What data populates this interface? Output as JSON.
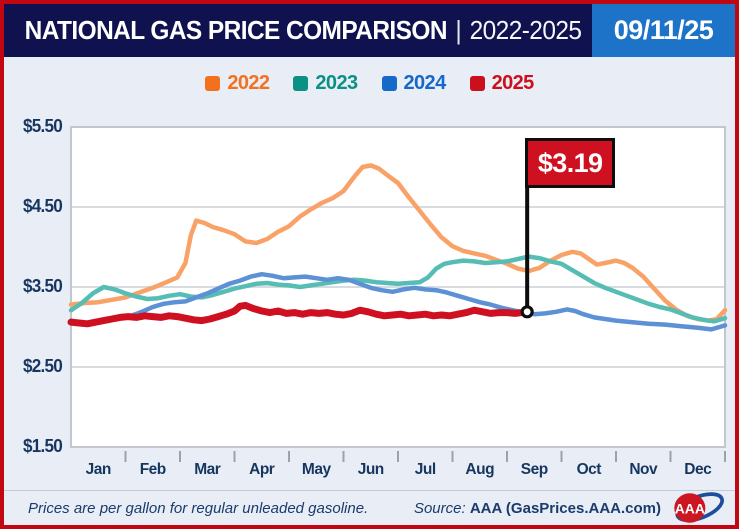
{
  "header": {
    "title": "NATIONAL GAS PRICE COMPARISON",
    "separator": "|",
    "range": "2022-2025",
    "date": "09/11/25"
  },
  "legend": [
    {
      "label": "2022",
      "color": "#F3701E"
    },
    {
      "label": "2023",
      "color": "#0B9183"
    },
    {
      "label": "2024",
      "color": "#1569C8"
    },
    {
      "label": "2025",
      "color": "#CC0F1D"
    }
  ],
  "chart_data": {
    "type": "line",
    "title": "National Gas Price Comparison 2022-2025",
    "unit": "USD per gallon",
    "grid": true,
    "ylim": [
      1.5,
      5.5
    ],
    "y_ticks": [
      {
        "label": "$5.50",
        "value": 5.5
      },
      {
        "label": "$4.50",
        "value": 4.5
      },
      {
        "label": "$3.50",
        "value": 3.5
      },
      {
        "label": "$2.50",
        "value": 2.5
      },
      {
        "label": "$1.50",
        "value": 1.5
      }
    ],
    "x_months": [
      "Jan",
      "Feb",
      "Mar",
      "Apr",
      "May",
      "Jun",
      "Jul",
      "Aug",
      "Sep",
      "Oct",
      "Nov",
      "Dec"
    ],
    "series": [
      {
        "name": "2022",
        "line_color": "#F9A268",
        "emphasis": false,
        "points": [
          [
            0,
            3.28
          ],
          [
            0.25,
            3.3
          ],
          [
            0.5,
            3.31
          ],
          [
            0.75,
            3.34
          ],
          [
            1.0,
            3.37
          ],
          [
            1.25,
            3.43
          ],
          [
            1.5,
            3.49
          ],
          [
            1.75,
            3.56
          ],
          [
            1.95,
            3.62
          ],
          [
            2.1,
            3.8
          ],
          [
            2.2,
            4.15
          ],
          [
            2.3,
            4.33
          ],
          [
            2.45,
            4.3
          ],
          [
            2.6,
            4.25
          ],
          [
            2.8,
            4.21
          ],
          [
            3.0,
            4.16
          ],
          [
            3.2,
            4.07
          ],
          [
            3.4,
            4.05
          ],
          [
            3.6,
            4.1
          ],
          [
            3.8,
            4.19
          ],
          [
            4.0,
            4.26
          ],
          [
            4.2,
            4.38
          ],
          [
            4.4,
            4.47
          ],
          [
            4.6,
            4.55
          ],
          [
            4.8,
            4.61
          ],
          [
            5.0,
            4.7
          ],
          [
            5.2,
            4.88
          ],
          [
            5.35,
            5.0
          ],
          [
            5.5,
            5.02
          ],
          [
            5.65,
            4.98
          ],
          [
            5.8,
            4.9
          ],
          [
            6.0,
            4.8
          ],
          [
            6.2,
            4.62
          ],
          [
            6.4,
            4.45
          ],
          [
            6.6,
            4.28
          ],
          [
            6.8,
            4.12
          ],
          [
            7.0,
            4.01
          ],
          [
            7.2,
            3.95
          ],
          [
            7.4,
            3.92
          ],
          [
            7.6,
            3.89
          ],
          [
            7.8,
            3.84
          ],
          [
            8.0,
            3.79
          ],
          [
            8.2,
            3.73
          ],
          [
            8.4,
            3.7
          ],
          [
            8.6,
            3.74
          ],
          [
            8.8,
            3.83
          ],
          [
            9.0,
            3.9
          ],
          [
            9.2,
            3.94
          ],
          [
            9.35,
            3.92
          ],
          [
            9.5,
            3.85
          ],
          [
            9.65,
            3.78
          ],
          [
            9.8,
            3.8
          ],
          [
            10.0,
            3.83
          ],
          [
            10.15,
            3.8
          ],
          [
            10.3,
            3.74
          ],
          [
            10.5,
            3.63
          ],
          [
            10.7,
            3.48
          ],
          [
            10.9,
            3.33
          ],
          [
            11.1,
            3.22
          ],
          [
            11.3,
            3.14
          ],
          [
            11.5,
            3.1
          ],
          [
            11.7,
            3.08
          ],
          [
            11.85,
            3.1
          ],
          [
            12.0,
            3.21
          ]
        ]
      },
      {
        "name": "2023",
        "line_color": "#56BDB5",
        "emphasis": false,
        "points": [
          [
            0,
            3.21
          ],
          [
            0.2,
            3.3
          ],
          [
            0.4,
            3.42
          ],
          [
            0.6,
            3.5
          ],
          [
            0.8,
            3.47
          ],
          [
            1.0,
            3.42
          ],
          [
            1.2,
            3.38
          ],
          [
            1.4,
            3.35
          ],
          [
            1.6,
            3.36
          ],
          [
            1.8,
            3.39
          ],
          [
            2.0,
            3.41
          ],
          [
            2.2,
            3.38
          ],
          [
            2.4,
            3.37
          ],
          [
            2.6,
            3.4
          ],
          [
            2.8,
            3.44
          ],
          [
            3.0,
            3.48
          ],
          [
            3.2,
            3.51
          ],
          [
            3.4,
            3.54
          ],
          [
            3.6,
            3.55
          ],
          [
            3.8,
            3.53
          ],
          [
            4.0,
            3.52
          ],
          [
            4.2,
            3.5
          ],
          [
            4.4,
            3.52
          ],
          [
            4.6,
            3.54
          ],
          [
            4.8,
            3.56
          ],
          [
            5.0,
            3.58
          ],
          [
            5.2,
            3.59
          ],
          [
            5.4,
            3.58
          ],
          [
            5.6,
            3.56
          ],
          [
            5.8,
            3.55
          ],
          [
            6.0,
            3.54
          ],
          [
            6.2,
            3.55
          ],
          [
            6.4,
            3.56
          ],
          [
            6.55,
            3.62
          ],
          [
            6.7,
            3.73
          ],
          [
            6.85,
            3.79
          ],
          [
            7.0,
            3.81
          ],
          [
            7.2,
            3.83
          ],
          [
            7.4,
            3.82
          ],
          [
            7.6,
            3.8
          ],
          [
            7.8,
            3.81
          ],
          [
            8.0,
            3.82
          ],
          [
            8.2,
            3.85
          ],
          [
            8.4,
            3.88
          ],
          [
            8.6,
            3.86
          ],
          [
            8.8,
            3.82
          ],
          [
            9.0,
            3.79
          ],
          [
            9.2,
            3.71
          ],
          [
            9.4,
            3.63
          ],
          [
            9.6,
            3.55
          ],
          [
            9.8,
            3.49
          ],
          [
            10.0,
            3.44
          ],
          [
            10.2,
            3.39
          ],
          [
            10.4,
            3.34
          ],
          [
            10.6,
            3.29
          ],
          [
            10.8,
            3.25
          ],
          [
            11.0,
            3.22
          ],
          [
            11.2,
            3.17
          ],
          [
            11.4,
            3.12
          ],
          [
            11.6,
            3.09
          ],
          [
            11.8,
            3.07
          ],
          [
            12.0,
            3.11
          ]
        ]
      },
      {
        "name": "2024",
        "line_color": "#5C91D6",
        "emphasis": false,
        "points": [
          [
            0,
            3.08
          ],
          [
            0.15,
            3.06
          ],
          [
            0.3,
            3.05
          ],
          [
            0.5,
            3.07
          ],
          [
            0.7,
            3.09
          ],
          [
            0.9,
            3.11
          ],
          [
            1.1,
            3.14
          ],
          [
            1.3,
            3.19
          ],
          [
            1.5,
            3.25
          ],
          [
            1.7,
            3.29
          ],
          [
            1.9,
            3.31
          ],
          [
            2.1,
            3.32
          ],
          [
            2.3,
            3.37
          ],
          [
            2.5,
            3.42
          ],
          [
            2.7,
            3.48
          ],
          [
            2.9,
            3.54
          ],
          [
            3.1,
            3.58
          ],
          [
            3.3,
            3.63
          ],
          [
            3.5,
            3.66
          ],
          [
            3.7,
            3.64
          ],
          [
            3.9,
            3.61
          ],
          [
            4.1,
            3.62
          ],
          [
            4.3,
            3.63
          ],
          [
            4.5,
            3.61
          ],
          [
            4.7,
            3.59
          ],
          [
            4.9,
            3.61
          ],
          [
            5.1,
            3.59
          ],
          [
            5.3,
            3.54
          ],
          [
            5.5,
            3.49
          ],
          [
            5.7,
            3.46
          ],
          [
            5.9,
            3.44
          ],
          [
            6.1,
            3.47
          ],
          [
            6.3,
            3.49
          ],
          [
            6.5,
            3.47
          ],
          [
            6.7,
            3.46
          ],
          [
            6.9,
            3.43
          ],
          [
            7.1,
            3.39
          ],
          [
            7.3,
            3.35
          ],
          [
            7.5,
            3.31
          ],
          [
            7.7,
            3.28
          ],
          [
            7.9,
            3.24
          ],
          [
            8.1,
            3.21
          ],
          [
            8.3,
            3.18
          ],
          [
            8.5,
            3.16
          ],
          [
            8.7,
            3.17
          ],
          [
            8.9,
            3.19
          ],
          [
            9.1,
            3.22
          ],
          [
            9.25,
            3.2
          ],
          [
            9.4,
            3.16
          ],
          [
            9.6,
            3.12
          ],
          [
            9.8,
            3.1
          ],
          [
            10.0,
            3.08
          ],
          [
            10.3,
            3.06
          ],
          [
            10.6,
            3.04
          ],
          [
            10.9,
            3.03
          ],
          [
            11.2,
            3.01
          ],
          [
            11.5,
            2.99
          ],
          [
            11.75,
            2.97
          ],
          [
            12.0,
            3.02
          ]
        ]
      },
      {
        "name": "2025",
        "line_color": "#CF1020",
        "emphasis": true,
        "points": [
          [
            0,
            3.06
          ],
          [
            0.15,
            3.05
          ],
          [
            0.3,
            3.04
          ],
          [
            0.45,
            3.06
          ],
          [
            0.6,
            3.08
          ],
          [
            0.75,
            3.1
          ],
          [
            0.9,
            3.12
          ],
          [
            1.05,
            3.13
          ],
          [
            1.2,
            3.12
          ],
          [
            1.35,
            3.14
          ],
          [
            1.5,
            3.13
          ],
          [
            1.65,
            3.12
          ],
          [
            1.8,
            3.14
          ],
          [
            1.95,
            3.13
          ],
          [
            2.1,
            3.11
          ],
          [
            2.25,
            3.09
          ],
          [
            2.4,
            3.08
          ],
          [
            2.55,
            3.1
          ],
          [
            2.7,
            3.13
          ],
          [
            2.85,
            3.16
          ],
          [
            3.0,
            3.2
          ],
          [
            3.1,
            3.26
          ],
          [
            3.2,
            3.27
          ],
          [
            3.35,
            3.23
          ],
          [
            3.5,
            3.2
          ],
          [
            3.65,
            3.18
          ],
          [
            3.8,
            3.2
          ],
          [
            3.95,
            3.17
          ],
          [
            4.1,
            3.18
          ],
          [
            4.25,
            3.16
          ],
          [
            4.4,
            3.18
          ],
          [
            4.55,
            3.17
          ],
          [
            4.7,
            3.18
          ],
          [
            4.85,
            3.16
          ],
          [
            5.0,
            3.15
          ],
          [
            5.15,
            3.17
          ],
          [
            5.3,
            3.21
          ],
          [
            5.45,
            3.19
          ],
          [
            5.6,
            3.16
          ],
          [
            5.75,
            3.14
          ],
          [
            5.9,
            3.15
          ],
          [
            6.05,
            3.16
          ],
          [
            6.2,
            3.14
          ],
          [
            6.35,
            3.15
          ],
          [
            6.5,
            3.16
          ],
          [
            6.65,
            3.14
          ],
          [
            6.8,
            3.15
          ],
          [
            6.95,
            3.14
          ],
          [
            7.1,
            3.16
          ],
          [
            7.25,
            3.18
          ],
          [
            7.4,
            3.21
          ],
          [
            7.55,
            3.19
          ],
          [
            7.7,
            3.17
          ],
          [
            7.85,
            3.18
          ],
          [
            8.0,
            3.18
          ],
          [
            8.15,
            3.17
          ],
          [
            8.37,
            3.19
          ]
        ]
      }
    ],
    "annotation": {
      "label": "$3.19",
      "series": "2025",
      "month": 8.37,
      "value": 3.19
    }
  },
  "footer": {
    "note": "Prices are per gallon for regular unleaded gasoline.",
    "source_label": "Source:",
    "source_value": "AAA (GasPrices.AAA.com)",
    "logo_text": "AAA"
  },
  "colors": {
    "frame_border": "#C00712",
    "header_bg": "#10124F",
    "date_badge_bg": "#1C73C7",
    "page_bg": "#E9EEF6",
    "plot_border": "#C1C7CD",
    "gridline": "#D8DBDF",
    "axis_text": "#16365F",
    "flag_bg": "#CE1020"
  }
}
